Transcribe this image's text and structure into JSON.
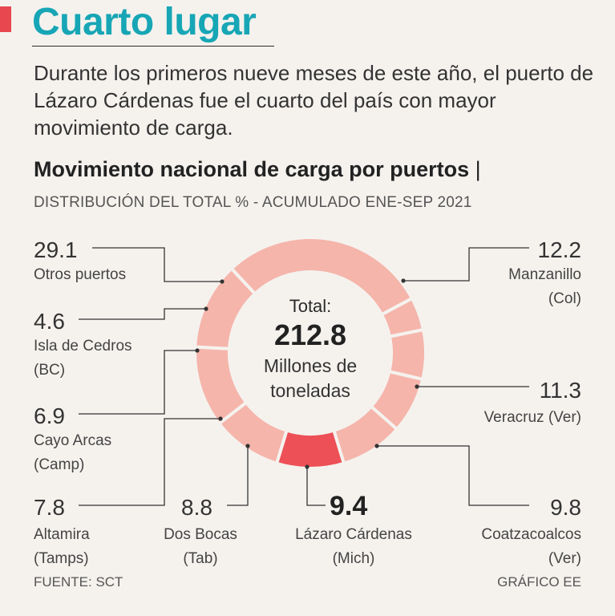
{
  "header": {
    "title": "Cuarto lugar",
    "intro": "Durante los primeros nueve meses de este año, el puerto de Lázaro Cárdenas fue el cuarto del país con mayor movimiento de carga."
  },
  "chart_header": {
    "title": "Movimiento nacional de carga por puertos",
    "separator": "|",
    "subtitle": "DISTRIBUCIÓN DEL TOTAL % - ACUMULADO ENE-SEP 2021"
  },
  "center": {
    "label": "Total:",
    "value": "212.8",
    "unit_line1": "Millones de",
    "unit_line2": "toneladas"
  },
  "footer": {
    "source": "FUENTE: SCT",
    "credit": "GRÁFICO EE"
  },
  "colors": {
    "slice": "#f5b5ab",
    "highlight": "#ed5056",
    "separator": "#f5f2ee",
    "line": "#333333"
  },
  "chart_data": {
    "type": "pie",
    "donut": true,
    "title": "Movimiento nacional de carga por puertos",
    "subtitle": "DISTRIBUCIÓN DEL TOTAL % - ACUMULADO ENE-SEP 2021",
    "total": 212.8,
    "total_unit": "Millones de toneladas",
    "highlight": "Lázaro Cárdenas",
    "slices": [
      {
        "name": "Lázaro Cárdenas",
        "label_lines": [
          "Lázaro Cárdenas",
          "(Mich)"
        ],
        "value": 9.4,
        "display": "9.4"
      },
      {
        "name": "Coatzacoalcos",
        "label_lines": [
          "Coatzacoalcos",
          "(Ver)"
        ],
        "value": 9.8,
        "display": "9.8"
      },
      {
        "name": "Veracruz",
        "label_lines": [
          "Veracruz (Ver)"
        ],
        "value": 11.3,
        "display": "11.3"
      },
      {
        "name": "Manzanillo",
        "label_lines": [
          "Manzanillo",
          "(Col)"
        ],
        "value": 12.2,
        "display": "12.2"
      },
      {
        "name": "Otros puertos",
        "label_lines": [
          "Otros puertos"
        ],
        "value": 29.1,
        "display": "29.1"
      },
      {
        "name": "Isla de Cedros",
        "label_lines": [
          "Isla de Cedros",
          "(BC)"
        ],
        "value": 4.6,
        "display": "4.6"
      },
      {
        "name": "Cayo Arcas",
        "label_lines": [
          "Cayo Arcas",
          "(Camp)"
        ],
        "value": 6.9,
        "display": "6.9"
      },
      {
        "name": "Altamira",
        "label_lines": [
          "Altamira",
          "(Tamps)"
        ],
        "value": 7.8,
        "display": "7.8"
      },
      {
        "name": "Dos Bocas",
        "label_lines": [
          "Dos Bocas",
          "(Tab)"
        ],
        "value": 8.8,
        "display": "8.8"
      }
    ]
  }
}
